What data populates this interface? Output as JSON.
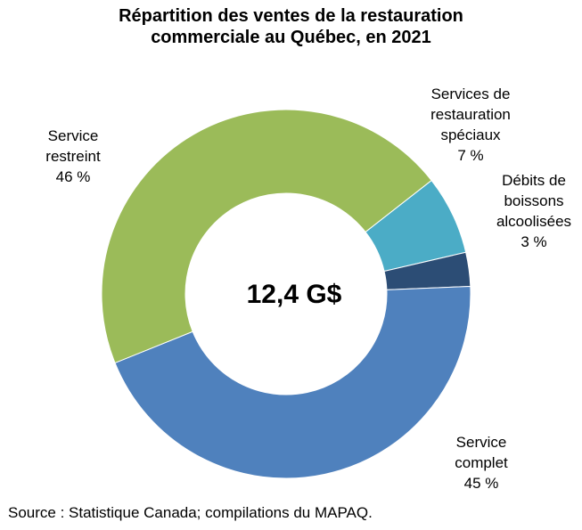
{
  "title_lines": [
    "Répartition des ventes de la restauration",
    "commerciale au Québec, en 2021"
  ],
  "center_label": "12,4 G$",
  "source": "Source : Statistique Canada; compilations du MAPAQ.",
  "chart_data": {
    "type": "pie",
    "donut": true,
    "title": "Répartition des ventes de la restauration commerciale au Québec, en 2021",
    "total_label": "12,4 G$",
    "slices": [
      {
        "label_lines": [
          "Services de",
          "restauration",
          "spéciaux"
        ],
        "pct_label": "7 %",
        "value": 7,
        "color": "#4BACC6"
      },
      {
        "label_lines": [
          "Débits de",
          "boissons",
          "alcoolisées"
        ],
        "pct_label": "3 %",
        "value": 3,
        "color": "#2C4D75"
      },
      {
        "label_lines": [
          "Service",
          "complet"
        ],
        "pct_label": "45 %",
        "value": 45,
        "color": "#4F81BD"
      },
      {
        "label_lines": [
          "Service",
          "restreint"
        ],
        "pct_label": "46 %",
        "value": 46,
        "color": "#9BBB59"
      }
    ],
    "start_angle_deg": 52,
    "direction": "clockwise"
  }
}
